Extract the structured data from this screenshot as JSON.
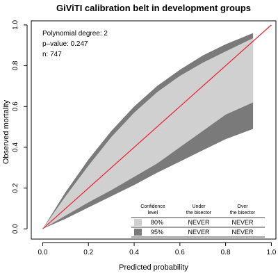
{
  "chart_data": {
    "type": "area",
    "title": "GiViTI calibration belt in development groups",
    "xlabel": "Predicted probability",
    "ylabel": "Observed mortality",
    "xlim": [
      -0.05,
      1.02
    ],
    "ylim": [
      -0.05,
      1.02
    ],
    "xticks": [
      0.0,
      0.2,
      0.4,
      0.6,
      0.8,
      1.0
    ],
    "yticks": [
      0.0,
      0.2,
      0.4,
      0.6,
      0.8,
      1.0
    ],
    "xtick_labels": [
      "0.0",
      "0.2",
      "0.4",
      "0.6",
      "0.8",
      "1.0"
    ],
    "ytick_labels": [
      "0.0",
      "0.2",
      "0.4",
      "0.6",
      "0.8",
      "1.0"
    ],
    "bisector": {
      "x": [
        0.0,
        1.0
      ],
      "y": [
        0.0,
        1.0
      ],
      "color": "#e8283a"
    },
    "stats": {
      "degree": "Polynomial degree: 2",
      "pvalue": "p–value: 0.247",
      "n": "n: 747"
    },
    "belt": {
      "x": [
        0.0,
        0.1,
        0.2,
        0.3,
        0.4,
        0.5,
        0.6,
        0.7,
        0.8,
        0.92
      ],
      "upper_95": [
        0.0,
        0.18,
        0.34,
        0.48,
        0.6,
        0.7,
        0.78,
        0.85,
        0.905,
        0.96
      ],
      "upper_80": [
        0.0,
        0.16,
        0.31,
        0.45,
        0.57,
        0.67,
        0.75,
        0.815,
        0.87,
        0.935
      ],
      "lower_80": [
        0.0,
        0.065,
        0.13,
        0.19,
        0.255,
        0.32,
        0.4,
        0.48,
        0.56,
        0.62
      ],
      "lower_95": [
        0.0,
        0.05,
        0.105,
        0.16,
        0.215,
        0.275,
        0.33,
        0.385,
        0.44,
        0.49
      ],
      "color_80": "#d0d0d0",
      "color_95": "#7a7a7a"
    },
    "legend": {
      "headers": [
        "Confidence\nlevel",
        "Under\nthe bisector",
        "Over\nthe bisector"
      ],
      "rows": [
        {
          "level": "80%",
          "under": "NEVER",
          "over": "NEVER",
          "color": "#d0d0d0"
        },
        {
          "level": "95%",
          "under": "NEVER",
          "over": "NEVER",
          "color": "#7a7a7a"
        }
      ],
      "placement": "bottom-right"
    },
    "grid": false
  }
}
